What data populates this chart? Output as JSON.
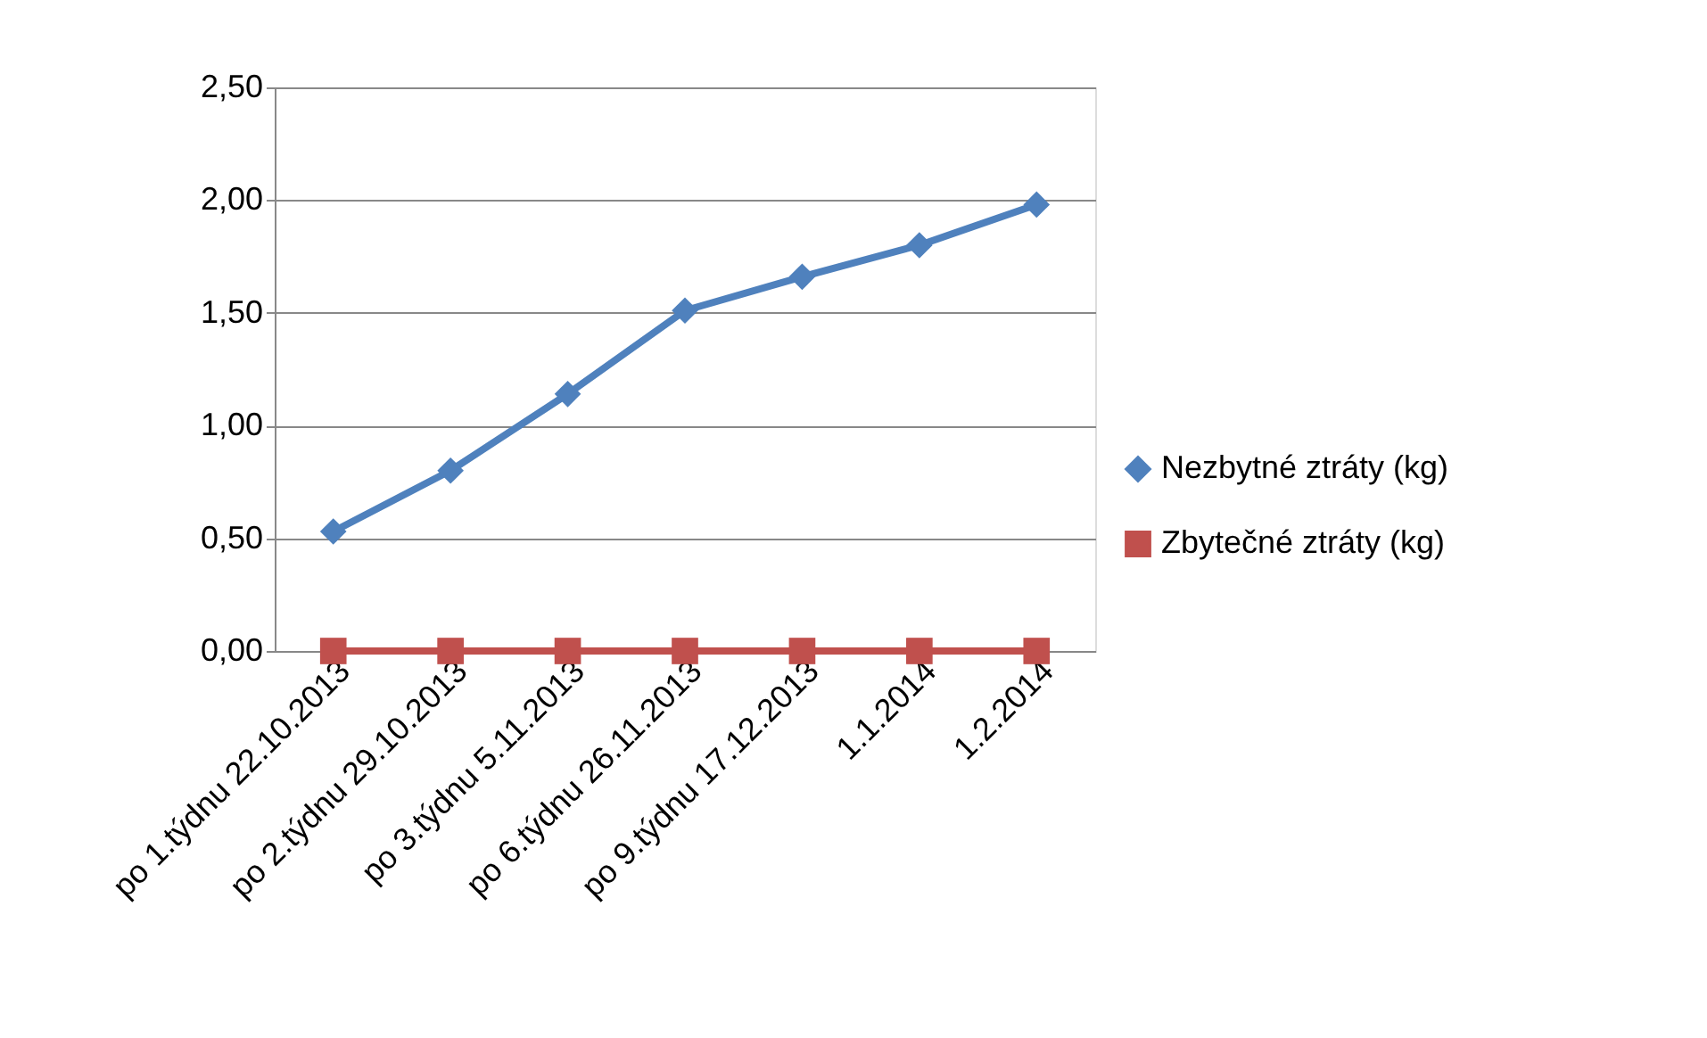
{
  "chart_data": {
    "type": "line",
    "categories": [
      "po 1.týdnu 22.10.2013",
      "po 2.týdnu 29.10.2013",
      "po 3.týdnu  5.11.2013",
      "po 6.týdnu 26.11.2013",
      "po 9.týdnu 17.12.2013",
      "1.1.2014",
      "1.2.2014"
    ],
    "series": [
      {
        "name": "Nezbytné ztráty (kg)",
        "color": "#4f81bd",
        "marker": "diamond",
        "values": [
          0.53,
          0.8,
          1.14,
          1.51,
          1.66,
          1.8,
          1.98
        ]
      },
      {
        "name": "Zbytečné ztráty (kg)",
        "color": "#c0504d",
        "marker": "square",
        "values": [
          0,
          0,
          0,
          0,
          0,
          0,
          0
        ]
      }
    ],
    "ylim": [
      0,
      2.5
    ],
    "yticks": [
      {
        "value": 0,
        "label": "0,00"
      },
      {
        "value": 0.5,
        "label": "0,50"
      },
      {
        "value": 1,
        "label": "1,00"
      },
      {
        "value": 1.5,
        "label": "1,50"
      },
      {
        "value": 2,
        "label": "2,00"
      },
      {
        "value": 2.5,
        "label": "2,50"
      }
    ],
    "grid": "y",
    "legend": "right",
    "line_style": "solid"
  }
}
